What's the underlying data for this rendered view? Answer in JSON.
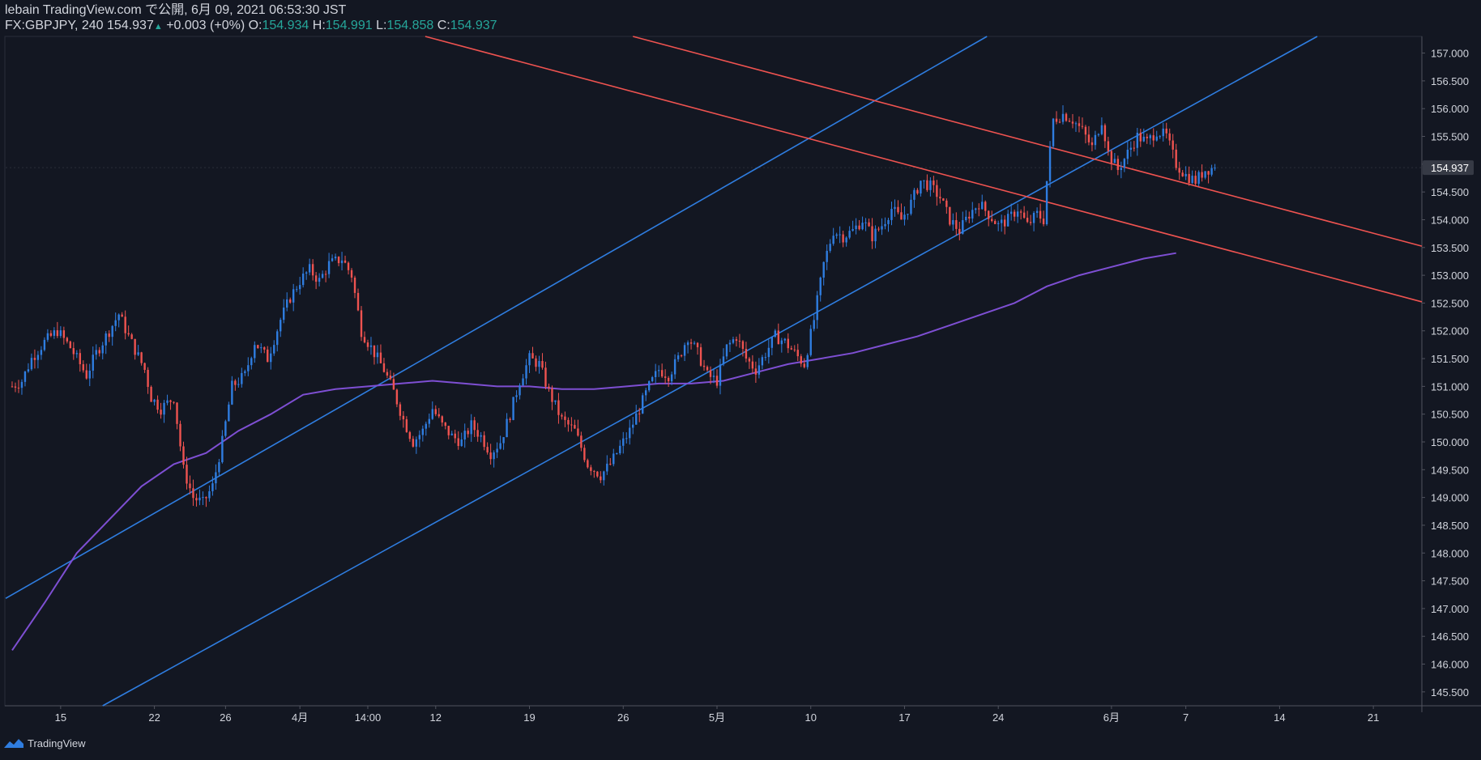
{
  "header": {
    "line1": "lebain TradingView.com で公開, 6月 09, 2021 06:53:30 JST",
    "symbol": "FX:GBPJPY, 240",
    "last": "154.937",
    "change_arrow": "▲",
    "change": "+0.003 (+0%)",
    "o_label": "O:",
    "o_value": "154.934",
    "h_label": "H:",
    "h_value": "154.991",
    "l_label": "L:",
    "l_value": "154.858",
    "c_label": "C:",
    "c_value": "154.937"
  },
  "footer": {
    "brand": "TradingView",
    "logo_icon": "tradingview-logo-icon"
  },
  "colors": {
    "background": "#131722",
    "up": "#2f7de0",
    "down": "#ef5350",
    "ma": "#7e4fd3",
    "channel_blue": "#2f7de0",
    "channel_red": "#ef5350",
    "axis_text": "#d1d4dc",
    "price_tag_bg": "#363a45"
  },
  "chart_data": {
    "type": "candlestick",
    "symbol": "FX:GBPJPY",
    "timeframe": "240",
    "ylim": [
      145.25,
      157.3
    ],
    "y_ticks": [
      145.5,
      146.0,
      146.5,
      147.0,
      147.5,
      148.0,
      148.5,
      149.0,
      149.5,
      150.0,
      150.5,
      151.0,
      151.5,
      152.0,
      152.5,
      153.0,
      153.5,
      154.0,
      154.5,
      155.0,
      155.5,
      156.0,
      156.5,
      157.0
    ],
    "y_tick_labels": [
      "145.500",
      "146.000",
      "146.500",
      "147.000",
      "147.500",
      "148.000",
      "148.500",
      "149.000",
      "149.500",
      "150.000",
      "150.500",
      "151.000",
      "151.500",
      "152.000",
      "152.500",
      "153.000",
      "153.500",
      "154.000",
      "154.500",
      "155.000",
      "155.500",
      "156.000",
      "156.500",
      "157.000"
    ],
    "x_ticks": [
      {
        "label": "15",
        "i": 15
      },
      {
        "label": "22",
        "i": 44
      },
      {
        "label": "26",
        "i": 66
      },
      {
        "label": "4月",
        "i": 89
      },
      {
        "label": "14:00",
        "i": 110
      },
      {
        "label": "12",
        "i": 131
      },
      {
        "label": "19",
        "i": 160
      },
      {
        "label": "26",
        "i": 189
      },
      {
        "label": "5月",
        "i": 218
      },
      {
        "label": "10",
        "i": 247
      },
      {
        "label": "17",
        "i": 276
      },
      {
        "label": "24",
        "i": 305
      },
      {
        "label": "6月",
        "i": 340
      },
      {
        "label": "7",
        "i": 363
      },
      {
        "label": "14",
        "i": 392
      },
      {
        "label": "21",
        "i": 421
      }
    ],
    "last_price": 154.937,
    "last_price_label": "154.937",
    "waypoints": [
      [
        0,
        151.0
      ],
      [
        3,
        151.1
      ],
      [
        6,
        151.5
      ],
      [
        10,
        151.8
      ],
      [
        14,
        152.0
      ],
      [
        18,
        151.7
      ],
      [
        23,
        151.2
      ],
      [
        26,
        151.6
      ],
      [
        30,
        152.0
      ],
      [
        33,
        152.3
      ],
      [
        36,
        151.9
      ],
      [
        41,
        151.3
      ],
      [
        43,
        150.8
      ],
      [
        46,
        150.6
      ],
      [
        50,
        150.8
      ],
      [
        53,
        149.5
      ],
      [
        56,
        149.0
      ],
      [
        59,
        148.9
      ],
      [
        62,
        149.2
      ],
      [
        65,
        150.0
      ],
      [
        68,
        151.0
      ],
      [
        72,
        151.2
      ],
      [
        75,
        151.8
      ],
      [
        79,
        151.5
      ],
      [
        83,
        152.2
      ],
      [
        86,
        152.6
      ],
      [
        89,
        152.9
      ],
      [
        92,
        153.1
      ],
      [
        95,
        152.9
      ],
      [
        98,
        153.2
      ],
      [
        102,
        153.3
      ],
      [
        105,
        153.0
      ],
      [
        108,
        152.0
      ],
      [
        112,
        151.6
      ],
      [
        115,
        151.3
      ],
      [
        118,
        150.9
      ],
      [
        121,
        150.4
      ],
      [
        124,
        150.0
      ],
      [
        127,
        150.2
      ],
      [
        130,
        150.6
      ],
      [
        133,
        150.3
      ],
      [
        136,
        150.1
      ],
      [
        139,
        150.0
      ],
      [
        142,
        150.3
      ],
      [
        145,
        150.1
      ],
      [
        148,
        149.8
      ],
      [
        151,
        150.0
      ],
      [
        154,
        150.5
      ],
      [
        157,
        151.1
      ],
      [
        160,
        151.5
      ],
      [
        163,
        151.4
      ],
      [
        166,
        150.9
      ],
      [
        170,
        150.4
      ],
      [
        174,
        150.2
      ],
      [
        178,
        149.6
      ],
      [
        182,
        149.4
      ],
      [
        185,
        149.6
      ],
      [
        188,
        149.9
      ],
      [
        191,
        150.2
      ],
      [
        194,
        150.6
      ],
      [
        197,
        151.0
      ],
      [
        200,
        151.3
      ],
      [
        203,
        151.2
      ],
      [
        206,
        151.5
      ],
      [
        209,
        151.9
      ],
      [
        212,
        151.6
      ],
      [
        215,
        151.2
      ],
      [
        218,
        151.1
      ],
      [
        221,
        151.7
      ],
      [
        224,
        151.9
      ],
      [
        227,
        151.5
      ],
      [
        230,
        151.3
      ],
      [
        233,
        151.6
      ],
      [
        236,
        151.9
      ],
      [
        239,
        151.8
      ],
      [
        242,
        151.6
      ],
      [
        245,
        151.4
      ],
      [
        248,
        152.2
      ],
      [
        251,
        153.2
      ],
      [
        254,
        153.8
      ],
      [
        257,
        153.7
      ],
      [
        260,
        153.8
      ],
      [
        263,
        154.0
      ],
      [
        266,
        153.7
      ],
      [
        269,
        153.9
      ],
      [
        272,
        154.2
      ],
      [
        275,
        154.0
      ],
      [
        278,
        154.3
      ],
      [
        281,
        154.7
      ],
      [
        284,
        154.6
      ],
      [
        287,
        154.4
      ],
      [
        290,
        154.0
      ],
      [
        293,
        153.8
      ],
      [
        296,
        154.1
      ],
      [
        299,
        154.3
      ],
      [
        302,
        154.1
      ],
      [
        305,
        153.9
      ],
      [
        308,
        154.0
      ],
      [
        311,
        154.2
      ],
      [
        314,
        153.9
      ],
      [
        317,
        154.1
      ],
      [
        319,
        154.0
      ],
      [
        320,
        154.7
      ],
      [
        322,
        155.8
      ],
      [
        325,
        155.9
      ],
      [
        328,
        155.8
      ],
      [
        331,
        155.6
      ],
      [
        334,
        155.3
      ],
      [
        337,
        155.8
      ],
      [
        339,
        155.2
      ],
      [
        342,
        154.9
      ],
      [
        345,
        155.2
      ],
      [
        348,
        155.5
      ],
      [
        351,
        155.4
      ],
      [
        354,
        155.6
      ],
      [
        357,
        155.5
      ],
      [
        360,
        155.0
      ],
      [
        363,
        154.8
      ],
      [
        366,
        154.7
      ],
      [
        369,
        154.9
      ],
      [
        372,
        154.94
      ]
    ],
    "moving_average": [
      [
        0,
        146.25
      ],
      [
        10,
        147.1
      ],
      [
        20,
        148.0
      ],
      [
        30,
        148.6
      ],
      [
        40,
        149.2
      ],
      [
        50,
        149.6
      ],
      [
        60,
        149.8
      ],
      [
        70,
        150.2
      ],
      [
        80,
        150.5
      ],
      [
        90,
        150.85
      ],
      [
        100,
        150.95
      ],
      [
        110,
        151.0
      ],
      [
        120,
        151.05
      ],
      [
        130,
        151.1
      ],
      [
        140,
        151.05
      ],
      [
        150,
        151.0
      ],
      [
        160,
        151.0
      ],
      [
        170,
        150.95
      ],
      [
        180,
        150.95
      ],
      [
        190,
        151.0
      ],
      [
        200,
        151.05
      ],
      [
        210,
        151.05
      ],
      [
        220,
        151.1
      ],
      [
        230,
        151.25
      ],
      [
        240,
        151.4
      ],
      [
        250,
        151.5
      ],
      [
        260,
        151.6
      ],
      [
        270,
        151.75
      ],
      [
        280,
        151.9
      ],
      [
        290,
        152.1
      ],
      [
        300,
        152.3
      ],
      [
        310,
        152.5
      ],
      [
        320,
        152.8
      ],
      [
        330,
        153.0
      ],
      [
        340,
        153.15
      ],
      [
        350,
        153.3
      ],
      [
        360,
        153.4
      ]
    ],
    "trendlines": [
      {
        "name": "blue-upper",
        "color": "#2f7de0",
        "p1": [
          0,
          147.25
        ],
        "p2": [
          300,
          157.25
        ]
      },
      {
        "name": "blue-lower",
        "color": "#2f7de0",
        "p1": [
          28,
          145.25
        ],
        "p2": [
          360,
          155.9
        ]
      },
      {
        "name": "red-upper",
        "color": "#ef5350",
        "p1": [
          192,
          157.3
        ],
        "p2": [
          360,
          154.7
        ]
      },
      {
        "name": "red-lower",
        "color": "#ef5350",
        "p1": [
          131,
          157.25
        ],
        "p2": [
          360,
          153.7
        ]
      }
    ]
  }
}
